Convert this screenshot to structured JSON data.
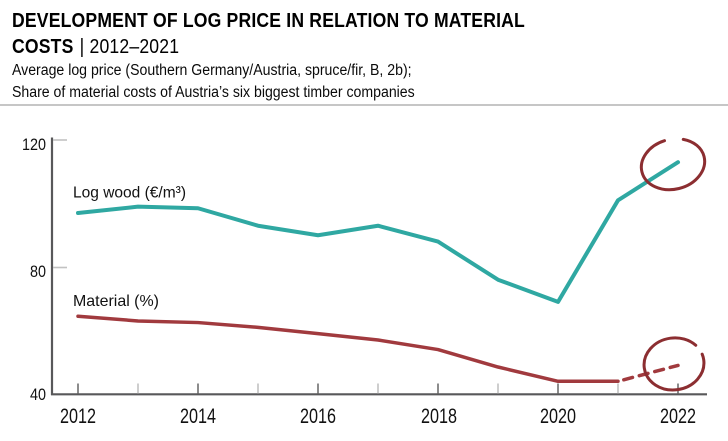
{
  "title": {
    "line1": "DEVELOPMENT OF LOG PRICE IN RELATION TO MATERIAL",
    "line2_bold": "COSTS",
    "line2_rest": "| 2012–2021"
  },
  "subtitle": {
    "line1": "Average log price (Southern Germany/Austria, spruce/fir, B, 2b);",
    "line2": "Share of material costs of Austria’s six biggest timber companies"
  },
  "chart_data": {
    "type": "line",
    "title": "DEVELOPMENT OF LOG PRICE IN RELATION TO MATERIAL COSTS | 2012–2021",
    "x": [
      2012,
      2013,
      2014,
      2015,
      2016,
      2017,
      2018,
      2019,
      2020,
      2021,
      2022
    ],
    "series": [
      {
        "name": "Log wood (€/m³)",
        "color": "#2FA8A2",
        "values": [
          97,
          99,
          98.5,
          93,
          90,
          93,
          88,
          76,
          69,
          101,
          113
        ],
        "style": "solid",
        "annotation": "hand-drawn circle around 2022 endpoint"
      },
      {
        "name": "Material (%)",
        "color": "#A13A3E",
        "values": [
          64.5,
          63,
          62.5,
          61,
          59,
          57,
          54,
          48.5,
          44,
          44,
          49
        ],
        "style": "solid to 2021, dashed projection 2021–2022",
        "annotation": "hand-drawn circle around 2022 endpoint"
      }
    ],
    "xtick_labels": [
      "2012",
      "2014",
      "2016",
      "2018",
      "2020",
      "2022"
    ],
    "ytick_labels": [
      "40",
      "80",
      "120"
    ],
    "ylim": [
      40,
      120
    ],
    "xlabel": "",
    "ylabel": "",
    "grid": false,
    "legend": "inline series labels above each line",
    "axis_color": "#58585A",
    "annotation_color": "#8C2E31"
  }
}
